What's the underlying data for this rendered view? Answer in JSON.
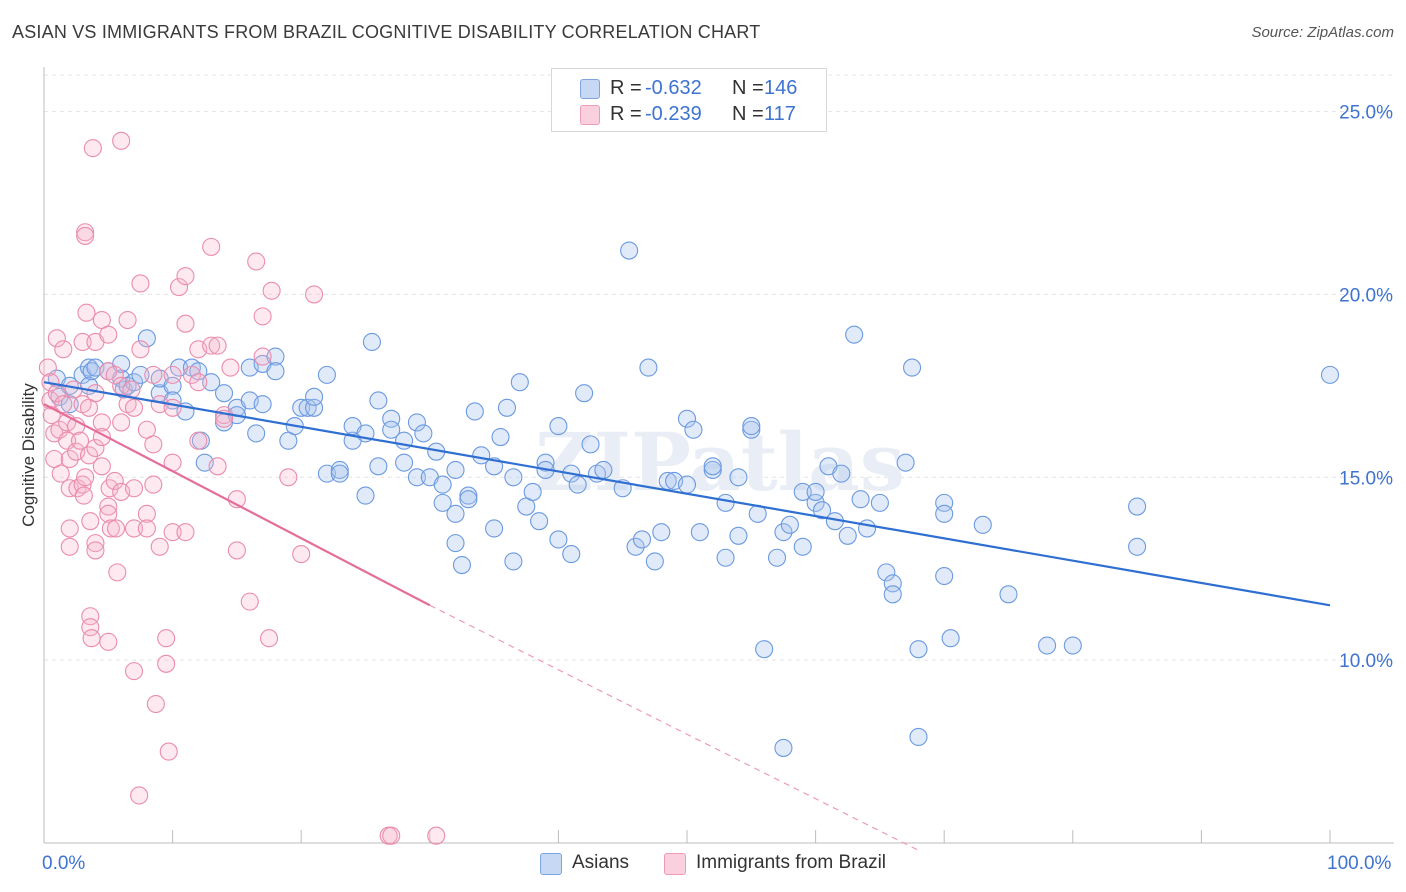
{
  "title": "ASIAN VS IMMIGRANTS FROM BRAZIL COGNITIVE DISABILITY CORRELATION CHART",
  "source": "Source: ZipAtlas.com",
  "watermark": "ZIPatlas",
  "legend_top": [
    {
      "r_label": "R =",
      "r_value": "-0.632",
      "n_label": "N =",
      "n_value": "146",
      "color": "#a9c4ee"
    },
    {
      "r_label": "R =",
      "r_value": "-0.239",
      "n_label": "N =",
      "n_value": "117",
      "color": "#f7b7cb"
    }
  ],
  "legend_bottom": [
    {
      "label": "Asians",
      "color": "#a9c4ee"
    },
    {
      "label": "Immigrants from Brazil",
      "color": "#f7b7cb"
    }
  ],
  "chart_data": {
    "type": "scatter",
    "title": "ASIAN VS IMMIGRANTS FROM BRAZIL COGNITIVE DISABILITY CORRELATION CHART",
    "xlabel": "",
    "ylabel": "Cognitive Disability",
    "xlim": [
      0,
      100
    ],
    "ylim": [
      5.0,
      26.0
    ],
    "x_tick_labels": [
      "0.0%",
      "100.0%"
    ],
    "y_ticks": [
      10.0,
      15.0,
      20.0,
      25.0
    ],
    "y_tick_labels": [
      "10.0%",
      "15.0%",
      "20.0%",
      "25.0%"
    ],
    "grid": true,
    "legend_position": "top-center",
    "series": [
      {
        "name": "Asians",
        "color": "#3e73d0",
        "fill": "#a9c4ee",
        "trend": {
          "x0": 0,
          "y0": 17.6,
          "x1": 100,
          "y1": 11.5
        },
        "points": [
          [
            1,
            17.7
          ],
          [
            1.2,
            17.2
          ],
          [
            2,
            17.5
          ],
          [
            2,
            17.0
          ],
          [
            3,
            17.8
          ],
          [
            3.5,
            18.0
          ],
          [
            3.5,
            17.5
          ],
          [
            3.7,
            17.9
          ],
          [
            4,
            18.0
          ],
          [
            5,
            17.9
          ],
          [
            6,
            17.7
          ],
          [
            6,
            18.1
          ],
          [
            6.2,
            17.4
          ],
          [
            6.5,
            17.5
          ],
          [
            7,
            17.6
          ],
          [
            7.5,
            17.8
          ],
          [
            8,
            18.8
          ],
          [
            9,
            17.3
          ],
          [
            9,
            17.7
          ],
          [
            10,
            17.5
          ],
          [
            10,
            17.1
          ],
          [
            10.5,
            18.0
          ],
          [
            11,
            16.8
          ],
          [
            11.5,
            18.0
          ],
          [
            12,
            17.9
          ],
          [
            12.2,
            16.0
          ],
          [
            13,
            17.6
          ],
          [
            12.5,
            15.4
          ],
          [
            14,
            17.3
          ],
          [
            14,
            16.5
          ],
          [
            15,
            16.9
          ],
          [
            15,
            16.7
          ],
          [
            16,
            17.1
          ],
          [
            16,
            18.0
          ],
          [
            16.5,
            16.2
          ],
          [
            17,
            17.0
          ],
          [
            17,
            18.1
          ],
          [
            18,
            18.3
          ],
          [
            18,
            17.9
          ],
          [
            19,
            16.0
          ],
          [
            19.5,
            16.4
          ],
          [
            20,
            16.9
          ],
          [
            20.5,
            16.9
          ],
          [
            21,
            16.9
          ],
          [
            21,
            17.2
          ],
          [
            22,
            15.1
          ],
          [
            22,
            17.8
          ],
          [
            23,
            15.2
          ],
          [
            23,
            15.1
          ],
          [
            24,
            16.0
          ],
          [
            24,
            16.4
          ],
          [
            25,
            14.5
          ],
          [
            25,
            16.2
          ],
          [
            25.5,
            18.7
          ],
          [
            26,
            17.1
          ],
          [
            26,
            15.3
          ],
          [
            27,
            16.6
          ],
          [
            27,
            16.3
          ],
          [
            28,
            15.4
          ],
          [
            28,
            16.0
          ],
          [
            29,
            16.5
          ],
          [
            29,
            15.0
          ],
          [
            29.5,
            16.2
          ],
          [
            30,
            15.0
          ],
          [
            30.5,
            15.7
          ],
          [
            31,
            14.3
          ],
          [
            31,
            14.8
          ],
          [
            32,
            14.0
          ],
          [
            32,
            15.2
          ],
          [
            32.5,
            12.6
          ],
          [
            32,
            13.2
          ],
          [
            33,
            14.5
          ],
          [
            33,
            14.4
          ],
          [
            33.5,
            16.8
          ],
          [
            34,
            15.6
          ],
          [
            35,
            13.6
          ],
          [
            35,
            15.3
          ],
          [
            35.5,
            16.1
          ],
          [
            36,
            16.9
          ],
          [
            36.5,
            15.0
          ],
          [
            36.5,
            12.7
          ],
          [
            37,
            17.6
          ],
          [
            37.5,
            14.2
          ],
          [
            38,
            14.6
          ],
          [
            38.5,
            13.8
          ],
          [
            39,
            15.4
          ],
          [
            39,
            15.2
          ],
          [
            40,
            16.4
          ],
          [
            40,
            13.3
          ],
          [
            41,
            15.1
          ],
          [
            41,
            12.9
          ],
          [
            41.5,
            14.8
          ],
          [
            42,
            17.3
          ],
          [
            42.5,
            15.9
          ],
          [
            43,
            15.1
          ],
          [
            43.5,
            15.2
          ],
          [
            45,
            14.7
          ],
          [
            45.5,
            21.2
          ],
          [
            46,
            13.1
          ],
          [
            46.5,
            13.3
          ],
          [
            47,
            18.0
          ],
          [
            47.5,
            12.7
          ],
          [
            48,
            13.5
          ],
          [
            48.5,
            14.9
          ],
          [
            49,
            14.9
          ],
          [
            50,
            14.8
          ],
          [
            50,
            16.6
          ],
          [
            50.5,
            16.3
          ],
          [
            51,
            13.5
          ],
          [
            52,
            15.2
          ],
          [
            52,
            15.3
          ],
          [
            53,
            14.3
          ],
          [
            53,
            12.8
          ],
          [
            54,
            15.0
          ],
          [
            54,
            13.4
          ],
          [
            55,
            16.3
          ],
          [
            55,
            16.4
          ],
          [
            55.5,
            14.0
          ],
          [
            56,
            10.3
          ],
          [
            57,
            12.8
          ],
          [
            57.5,
            13.5
          ],
          [
            57.5,
            7.6
          ],
          [
            58,
            13.7
          ],
          [
            59,
            14.6
          ],
          [
            59,
            13.1
          ],
          [
            60,
            14.3
          ],
          [
            60,
            14.6
          ],
          [
            60.5,
            14.1
          ],
          [
            61,
            15.3
          ],
          [
            61.5,
            13.8
          ],
          [
            62,
            15.1
          ],
          [
            62.5,
            13.4
          ],
          [
            63,
            18.9
          ],
          [
            63.5,
            14.4
          ],
          [
            64,
            13.6
          ],
          [
            65,
            14.3
          ],
          [
            65.5,
            12.4
          ],
          [
            66,
            12.1
          ],
          [
            66,
            11.8
          ],
          [
            67,
            15.4
          ],
          [
            67.5,
            18.0
          ],
          [
            68,
            7.9
          ],
          [
            68,
            10.3
          ],
          [
            70,
            14.3
          ],
          [
            70,
            14.0
          ],
          [
            70,
            12.3
          ],
          [
            70.5,
            10.6
          ],
          [
            73,
            13.7
          ],
          [
            75,
            11.8
          ],
          [
            78,
            10.4
          ],
          [
            80,
            10.4
          ],
          [
            85,
            14.2
          ],
          [
            85,
            13.1
          ],
          [
            100,
            17.8
          ]
        ]
      },
      {
        "name": "Immigrants from Brazil",
        "color": "#e46e9a",
        "fill": "#f7b7cb",
        "trend": {
          "x0": 0,
          "y0": 17.0,
          "x1": 30,
          "y1": 11.5
        },
        "trend_dashed": {
          "x0": 30,
          "y0": 11.5,
          "x1": 68,
          "y1": 4.8
        },
        "points": [
          [
            0.3,
            18.0
          ],
          [
            0.5,
            17.6
          ],
          [
            0.5,
            17.1
          ],
          [
            0.6,
            16.7
          ],
          [
            0.8,
            16.2
          ],
          [
            0.8,
            15.5
          ],
          [
            1,
            18.8
          ],
          [
            1,
            17.3
          ],
          [
            1.2,
            16.3
          ],
          [
            1.3,
            15.1
          ],
          [
            1.5,
            18.5
          ],
          [
            1.5,
            17.0
          ],
          [
            1.8,
            16.5
          ],
          [
            1.8,
            16.0
          ],
          [
            2,
            15.5
          ],
          [
            2,
            13.6
          ],
          [
            2,
            13.1
          ],
          [
            2,
            14.7
          ],
          [
            2.3,
            17.4
          ],
          [
            2.5,
            16.4
          ],
          [
            2.5,
            15.7
          ],
          [
            2.6,
            14.7
          ],
          [
            2.8,
            16.0
          ],
          [
            3,
            17.0
          ],
          [
            3,
            14.8
          ],
          [
            3,
            18.7
          ],
          [
            3.1,
            14.5
          ],
          [
            3.2,
            15.0
          ],
          [
            3.2,
            21.7
          ],
          [
            3.2,
            21.6
          ],
          [
            3.3,
            19.5
          ],
          [
            3.5,
            16.9
          ],
          [
            3.5,
            15.6
          ],
          [
            3.6,
            13.8
          ],
          [
            3.6,
            11.2
          ],
          [
            3.6,
            10.9
          ],
          [
            3.7,
            10.6
          ],
          [
            3.8,
            24.0
          ],
          [
            4,
            18.7
          ],
          [
            4,
            15.8
          ],
          [
            4,
            17.3
          ],
          [
            4,
            13.2
          ],
          [
            4,
            13.0
          ],
          [
            4.5,
            16.5
          ],
          [
            4.5,
            15.3
          ],
          [
            4.5,
            16.1
          ],
          [
            4.5,
            19.3
          ],
          [
            5,
            18.9
          ],
          [
            5,
            17.9
          ],
          [
            5,
            14.2
          ],
          [
            5,
            14.0
          ],
          [
            5,
            10.5
          ],
          [
            5.1,
            14.7
          ],
          [
            5.2,
            13.6
          ],
          [
            5.5,
            17.8
          ],
          [
            5.5,
            14.9
          ],
          [
            5.6,
            13.6
          ],
          [
            5.7,
            12.4
          ],
          [
            6,
            24.2
          ],
          [
            6,
            17.5
          ],
          [
            6,
            16.5
          ],
          [
            6,
            14.6
          ],
          [
            6.5,
            19.3
          ],
          [
            6.5,
            17.0
          ],
          [
            6.8,
            17.4
          ],
          [
            7,
            16.9
          ],
          [
            7,
            14.7
          ],
          [
            7,
            13.6
          ],
          [
            7,
            9.7
          ],
          [
            7.4,
            6.3
          ],
          [
            7.5,
            20.3
          ],
          [
            7.5,
            18.5
          ],
          [
            8,
            16.3
          ],
          [
            8,
            14.0
          ],
          [
            8,
            13.6
          ],
          [
            8.5,
            17.8
          ],
          [
            8.5,
            15.9
          ],
          [
            8.5,
            14.8
          ],
          [
            8.7,
            8.8
          ],
          [
            9,
            17.0
          ],
          [
            9,
            13.1
          ],
          [
            9.5,
            10.6
          ],
          [
            9.5,
            9.9
          ],
          [
            9.7,
            7.5
          ],
          [
            10,
            16.9
          ],
          [
            10,
            15.4
          ],
          [
            10,
            13.5
          ],
          [
            10,
            17.8
          ],
          [
            10.5,
            20.2
          ],
          [
            11,
            20.5
          ],
          [
            11,
            13.5
          ],
          [
            11,
            19.2
          ],
          [
            11.5,
            17.8
          ],
          [
            12,
            16.0
          ],
          [
            12,
            17.6
          ],
          [
            12,
            18.5
          ],
          [
            13,
            18.6
          ],
          [
            13,
            21.3
          ],
          [
            13.5,
            15.3
          ],
          [
            13.5,
            18.6
          ],
          [
            14,
            16.7
          ],
          [
            14,
            16.6
          ],
          [
            14.5,
            18.0
          ],
          [
            15,
            14.4
          ],
          [
            15,
            13.0
          ],
          [
            16,
            11.6
          ],
          [
            16.5,
            20.9
          ],
          [
            17,
            19.4
          ],
          [
            17,
            18.3
          ],
          [
            17.5,
            10.6
          ],
          [
            17.7,
            20.1
          ],
          [
            19,
            15.0
          ],
          [
            20,
            12.9
          ],
          [
            21,
            20.0
          ],
          [
            26.8,
            5.2
          ],
          [
            27,
            5.2
          ],
          [
            30.5,
            5.2
          ]
        ]
      }
    ]
  }
}
